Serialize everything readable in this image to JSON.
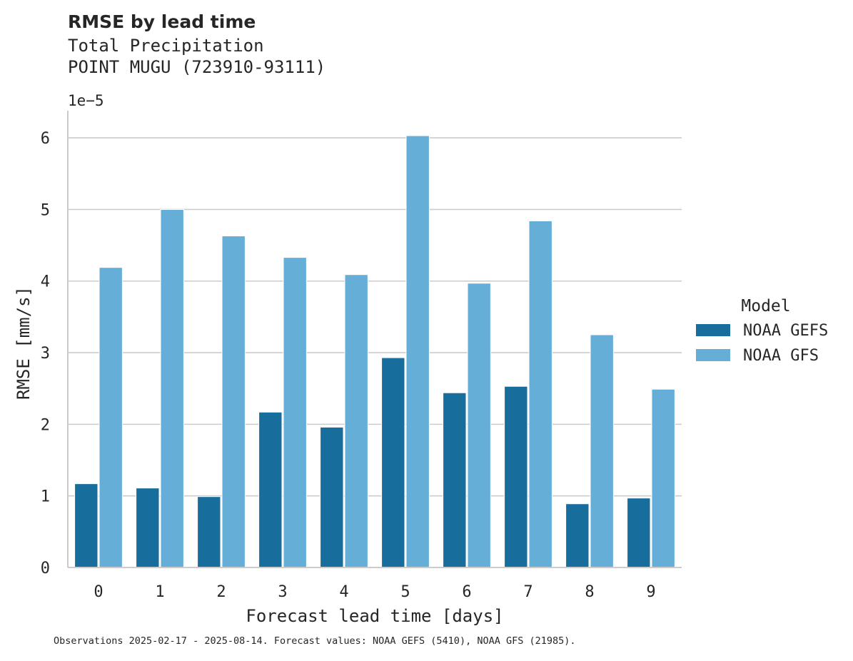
{
  "header": {
    "title": "RMSE by lead time",
    "subtitle_line1": "Total Precipitation",
    "subtitle_line2": "POINT MUGU (723910-93111)"
  },
  "footer": {
    "note": "Observations 2025-02-17 - 2025-08-14. Forecast values: NOAA GEFS (5410), NOAA GFS (21985)."
  },
  "chart_data": {
    "type": "bar",
    "title": "RMSE by lead time",
    "subtitle": "Total Precipitation\nPOINT MUGU (723910-93111)",
    "xlabel": "Forecast lead time [days]",
    "ylabel": "RMSE [mm/s]",
    "y_scale_note": "1e−5",
    "categories": [
      "0",
      "1",
      "2",
      "3",
      "4",
      "5",
      "6",
      "7",
      "8",
      "9"
    ],
    "yticks": [
      "0",
      "1",
      "2",
      "3",
      "4",
      "5",
      "6"
    ],
    "ylim": [
      0,
      6.35
    ],
    "grid": "horizontal",
    "legend_title": "Model",
    "legend_position": "right",
    "series": [
      {
        "name": "NOAA GEFS",
        "color": "#176d9c",
        "values": [
          1.17,
          1.11,
          0.99,
          2.17,
          1.96,
          2.93,
          2.44,
          2.53,
          0.89,
          0.97
        ]
      },
      {
        "name": "NOAA GFS",
        "color": "#65aed8",
        "values": [
          4.19,
          5.0,
          4.63,
          4.33,
          4.09,
          6.03,
          3.97,
          4.84,
          3.25,
          2.49
        ]
      }
    ]
  }
}
